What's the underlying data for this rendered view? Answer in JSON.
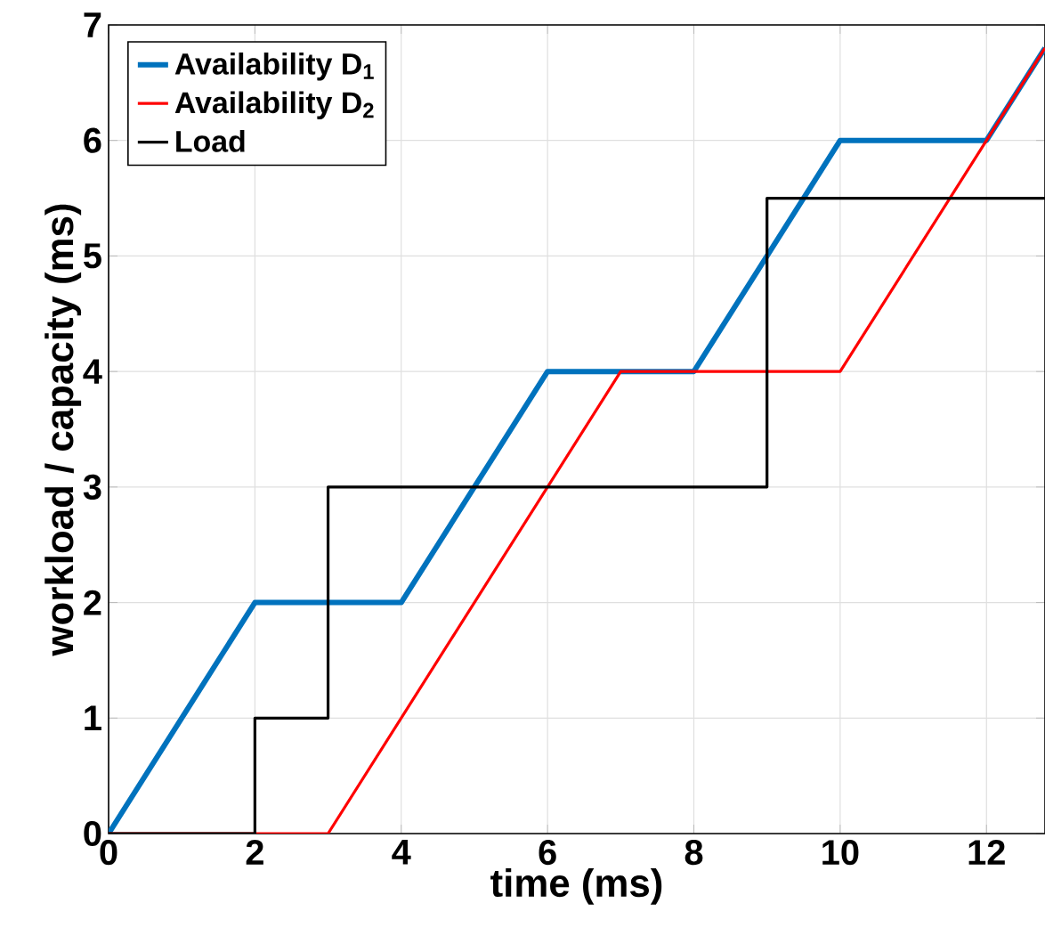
{
  "chart_data": {
    "type": "line",
    "xlabel": "time (ms)",
    "ylabel": "workload / capacity (ms)",
    "xlim": [
      0,
      12.8
    ],
    "ylim": [
      0,
      7
    ],
    "xticks": [
      0,
      2,
      4,
      6,
      8,
      10,
      12
    ],
    "yticks": [
      0,
      1,
      2,
      3,
      4,
      5,
      6,
      7
    ],
    "grid": true,
    "legend": "top left",
    "series": [
      {
        "name": "Availability D$_{1}$",
        "color": "#0072bd",
        "x": [
          0,
          2,
          4,
          6,
          8,
          10,
          12,
          12.8
        ],
        "values": [
          0,
          2,
          2,
          4,
          4,
          6,
          6,
          6.8
        ]
      },
      {
        "name": "Availability D$_{2}$",
        "color": "#ff0000",
        "x": [
          0,
          3,
          7,
          10,
          12.8
        ],
        "values": [
          0,
          0,
          4,
          4,
          6.8
        ]
      },
      {
        "name": "Load",
        "type": "step",
        "color": "#000000",
        "x": [
          0,
          2,
          3,
          9,
          12.8
        ],
        "values": [
          0,
          1,
          3,
          5.5,
          5.5
        ]
      }
    ]
  }
}
